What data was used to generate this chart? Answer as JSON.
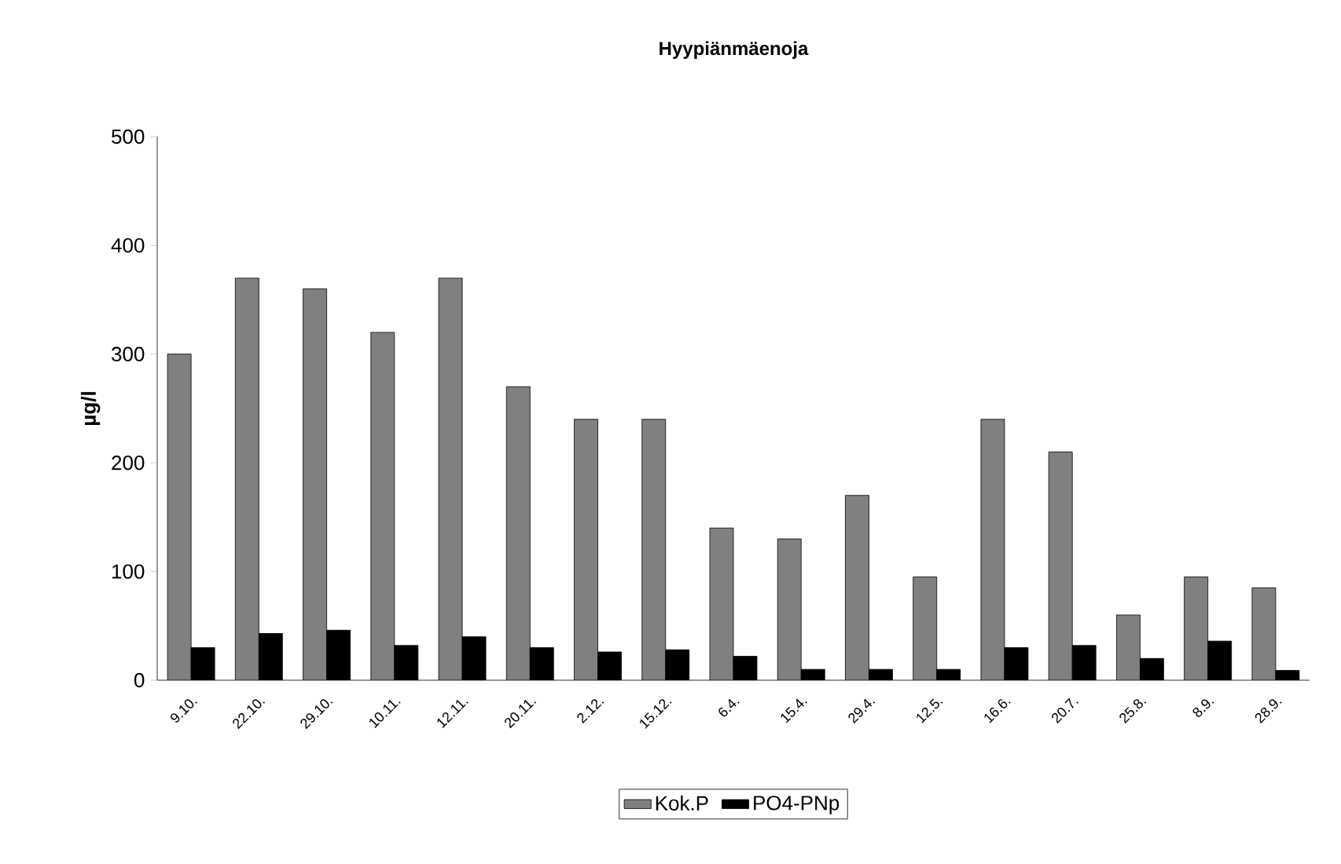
{
  "chart_data": {
    "type": "bar",
    "title": "Hyypiänmäenoja",
    "ylabel": "µg/l",
    "categories": [
      "9.10.",
      "22.10.",
      "29.10.",
      "10.11.",
      "12.11.",
      "20.11.",
      "2.12.",
      "15.12.",
      "6.4.",
      "15.4.",
      "29.4.",
      "12.5.",
      "16.6.",
      "20.7.",
      "25.8.",
      "8.9.",
      "28.9."
    ],
    "series": [
      {
        "name": "Kok.P",
        "color": "#808080",
        "values": [
          300,
          370,
          360,
          320,
          370,
          270,
          240,
          240,
          140,
          130,
          170,
          95,
          240,
          210,
          60,
          95,
          85
        ]
      },
      {
        "name": "PO4-PNp",
        "color": "#000000",
        "values": [
          30,
          43,
          46,
          32,
          40,
          30,
          26,
          28,
          22,
          10,
          10,
          10,
          30,
          32,
          20,
          36,
          9
        ]
      }
    ],
    "ylim": [
      0,
      500
    ],
    "yticks": [
      0,
      100,
      200,
      300,
      400,
      500
    ],
    "grid": false,
    "legend": "bottom"
  }
}
